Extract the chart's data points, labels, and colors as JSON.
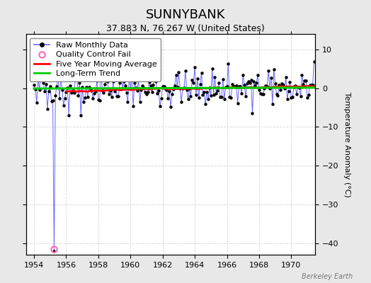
{
  "title": "SUNNYBANK",
  "subtitle": "37.883 N, 76.267 W (United States)",
  "ylabel": "Temperature Anomaly (°C)",
  "watermark": "Berkeley Earth",
  "xlim": [
    1953.5,
    1971.5
  ],
  "ylim": [
    -43,
    14
  ],
  "yticks": [
    -40,
    -30,
    -20,
    -10,
    0,
    10
  ],
  "xticks": [
    1954,
    1956,
    1958,
    1960,
    1962,
    1964,
    1966,
    1968,
    1970
  ],
  "bg_color": "#e8e8e8",
  "plot_bg_color": "#ffffff",
  "raw_color": "#6666ff",
  "raw_marker_color": "#000000",
  "qc_fail_color": "#ff69b4",
  "moving_avg_color": "#ff0000",
  "trend_color": "#00cc00",
  "grid_color": "#cccccc",
  "title_fontsize": 13,
  "subtitle_fontsize": 9,
  "legend_fontsize": 8,
  "ylabel_fontsize": 8,
  "seed": 42,
  "n_months": 210,
  "start_year": 1954.0,
  "qc_fail_y": -41.5,
  "spike_month_idx": 15,
  "spike_y": -42.0
}
